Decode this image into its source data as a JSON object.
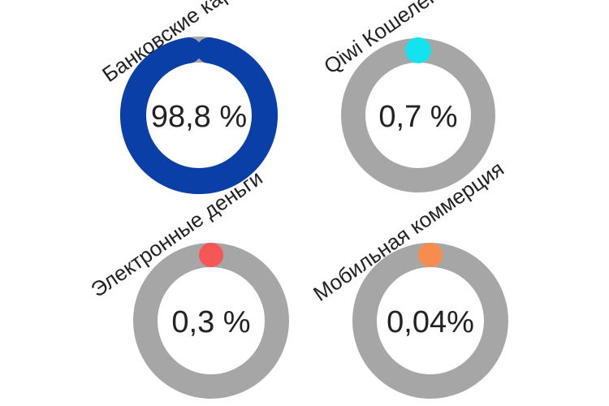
{
  "colors": {
    "track": "#a6a6a6",
    "background": "#ffffff"
  },
  "chart_data": {
    "type": "pie",
    "style": "donut",
    "unit": "%",
    "items": [
      {
        "name": "Банковские карты",
        "value": 98.8,
        "label": "98,8 %",
        "color": "#0a3fa8"
      },
      {
        "name": "Qiwi Кошелек",
        "value": 0.7,
        "label": "0,7 %",
        "color": "#14e3ee"
      },
      {
        "name": "Электронные деньги",
        "value": 0.3,
        "label": "0,3 %",
        "color": "#f55757"
      },
      {
        "name": "Мобильная коммерция",
        "value": 0.04,
        "label": "0,04%",
        "color": "#f68d4e"
      }
    ]
  }
}
